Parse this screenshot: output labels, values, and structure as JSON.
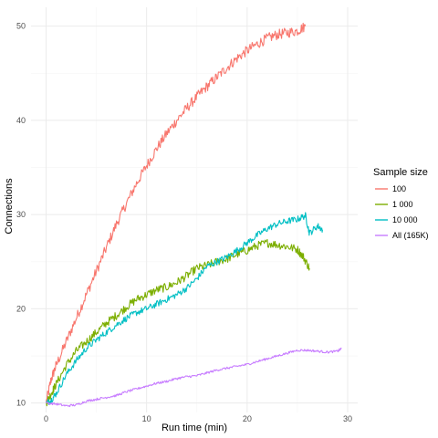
{
  "chart_data": {
    "type": "line",
    "xlabel": "Run time (min)",
    "ylabel": "Connections",
    "xlim": [
      -1.5,
      31
    ],
    "ylim": [
      9,
      52
    ],
    "x_ticks": [
      0,
      10,
      20,
      30
    ],
    "y_ticks": [
      10,
      20,
      30,
      40,
      50
    ],
    "grid": true,
    "legend": {
      "title": "Sample size",
      "placement": "right"
    },
    "series": [
      {
        "name": "100",
        "color": "#F8766D",
        "x": [
          0,
          0.5,
          1,
          2,
          3,
          4,
          5,
          6,
          7,
          8,
          9,
          10,
          11,
          12,
          13,
          14,
          15,
          16,
          17,
          18,
          19,
          20,
          21,
          22,
          23,
          24,
          25,
          25.8
        ],
        "y": [
          10,
          12.5,
          14,
          16.5,
          19,
          21.5,
          24,
          26.5,
          29,
          31.2,
          33.3,
          35.2,
          37.0,
          38.6,
          40.0,
          41.3,
          42.5,
          43.6,
          44.6,
          45.6,
          46.6,
          47.4,
          48.1,
          48.7,
          49.1,
          49.3,
          49.5,
          50.0
        ]
      },
      {
        "name": "1 000",
        "color": "#7CAE00",
        "x": [
          0,
          0.5,
          1,
          2,
          3,
          4,
          5,
          6,
          7,
          8,
          9,
          10,
          11,
          12,
          13,
          14,
          15,
          16,
          17,
          18,
          19,
          20,
          21,
          22,
          23,
          24,
          25,
          25.6,
          26.2
        ],
        "y": [
          10,
          11,
          12,
          14,
          15.5,
          16.5,
          17.5,
          18.5,
          19.3,
          20.2,
          21,
          21.5,
          22,
          22.3,
          22.8,
          23.5,
          24.3,
          24.6,
          25,
          25.3,
          25.8,
          26.2,
          26.7,
          27.0,
          26.8,
          26.6,
          26.3,
          25.5,
          24.3
        ]
      },
      {
        "name": "10 000",
        "color": "#00BFC4",
        "x": [
          0,
          0.5,
          1,
          2,
          3,
          4,
          5,
          6,
          7,
          8,
          9,
          10,
          11,
          12,
          13,
          14,
          15,
          16,
          17,
          18,
          19,
          20,
          21,
          22,
          23,
          24,
          25,
          25.8,
          26.2,
          27,
          27.5
        ],
        "y": [
          10,
          10.3,
          11,
          13,
          14.5,
          15.8,
          16.7,
          17.5,
          18.3,
          19,
          19.6,
          20,
          20.5,
          21,
          21.5,
          22.2,
          23.2,
          24.5,
          25,
          25.5,
          26.2,
          27,
          27.8,
          28.5,
          29.0,
          29.3,
          29.5,
          29.9,
          28.0,
          28.8,
          28.4
        ]
      },
      {
        "name": "All (165K)",
        "color": "#C77CFF",
        "x": [
          0,
          1,
          2,
          3,
          4,
          5,
          6,
          7,
          8,
          9,
          10,
          11,
          12,
          13,
          14,
          15,
          16,
          17,
          18,
          19,
          20,
          21,
          22,
          23,
          24,
          25,
          26,
          27,
          28,
          29,
          29.4
        ],
        "y": [
          10,
          9.9,
          9.7,
          9.8,
          10.2,
          10.4,
          10.6,
          10.8,
          11.2,
          11.5,
          11.8,
          12.1,
          12.3,
          12.6,
          12.8,
          12.9,
          13.2,
          13.5,
          13.7,
          13.9,
          14.1,
          14.4,
          14.7,
          15.0,
          15.3,
          15.6,
          15.6,
          15.5,
          15.4,
          15.5,
          15.8
        ]
      }
    ]
  }
}
